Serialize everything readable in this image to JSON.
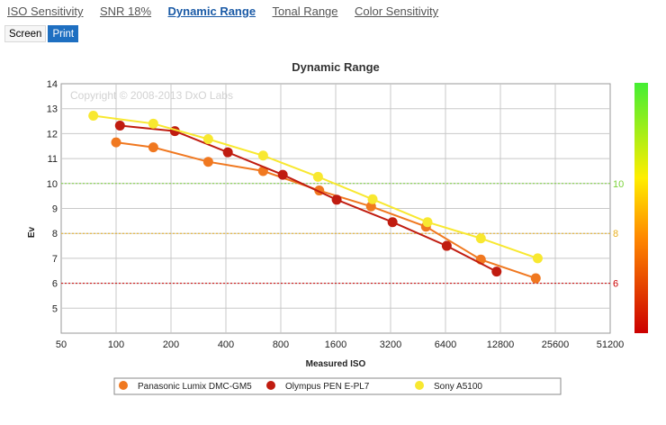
{
  "tabs": [
    {
      "label": "ISO Sensitivity",
      "active": false
    },
    {
      "label": "SNR 18%",
      "active": false
    },
    {
      "label": "Dynamic Range",
      "active": true
    },
    {
      "label": "Tonal Range",
      "active": false
    },
    {
      "label": "Color Sensitivity",
      "active": false
    }
  ],
  "view_toggle": {
    "screen_label": "Screen",
    "print_label": "Print",
    "selected": "Print"
  },
  "colors": {
    "grid": "#c8c8c8",
    "accent": "#1e6fc1"
  },
  "chart_data": {
    "type": "line",
    "title": "Dynamic Range",
    "xlabel": "Measured ISO",
    "ylabel": "Ev",
    "x_scale": "log2",
    "x_ticks": [
      50,
      100,
      200,
      400,
      800,
      1600,
      3200,
      6400,
      12800,
      25600,
      51200
    ],
    "xlim": [
      50,
      51200
    ],
    "y_ticks": [
      5,
      6,
      7,
      8,
      9,
      10,
      11,
      12,
      13,
      14
    ],
    "ylim": [
      4,
      14
    ],
    "grid": true,
    "watermark": "Copyright © 2008-2013 DxO Labs",
    "reference_lines": [
      {
        "y": 10,
        "label": "10",
        "color": "#7bd23a"
      },
      {
        "y": 8,
        "label": "8",
        "color": "#e8b020"
      },
      {
        "y": 6,
        "label": "6",
        "color": "#cc0000"
      }
    ],
    "color_scale": {
      "colors": [
        "#44ee33",
        "#ffee00",
        "#ff8800",
        "#cc0000"
      ]
    },
    "series": [
      {
        "name": "Panasonic Lumix DMC-GM5",
        "color": "#f07820",
        "x": [
          100,
          160,
          320,
          640,
          1300,
          2500,
          5000,
          10000,
          20000
        ],
        "y": [
          11.65,
          11.45,
          10.87,
          10.5,
          9.72,
          9.08,
          8.27,
          6.95,
          6.2
        ]
      },
      {
        "name": "Olympus PEN E-PL7",
        "color": "#c01c10",
        "x": [
          105,
          210,
          410,
          820,
          1620,
          3280,
          6500,
          12200
        ],
        "y": [
          12.32,
          12.1,
          11.25,
          10.35,
          9.35,
          8.45,
          7.5,
          6.47
        ]
      },
      {
        "name": "Sony A5100",
        "color": "#f8e830",
        "x": [
          75,
          160,
          320,
          640,
          1280,
          2550,
          5100,
          10000,
          20500
        ],
        "y": [
          12.72,
          12.4,
          11.78,
          11.12,
          10.27,
          9.37,
          8.45,
          7.8,
          7.0
        ]
      }
    ]
  }
}
